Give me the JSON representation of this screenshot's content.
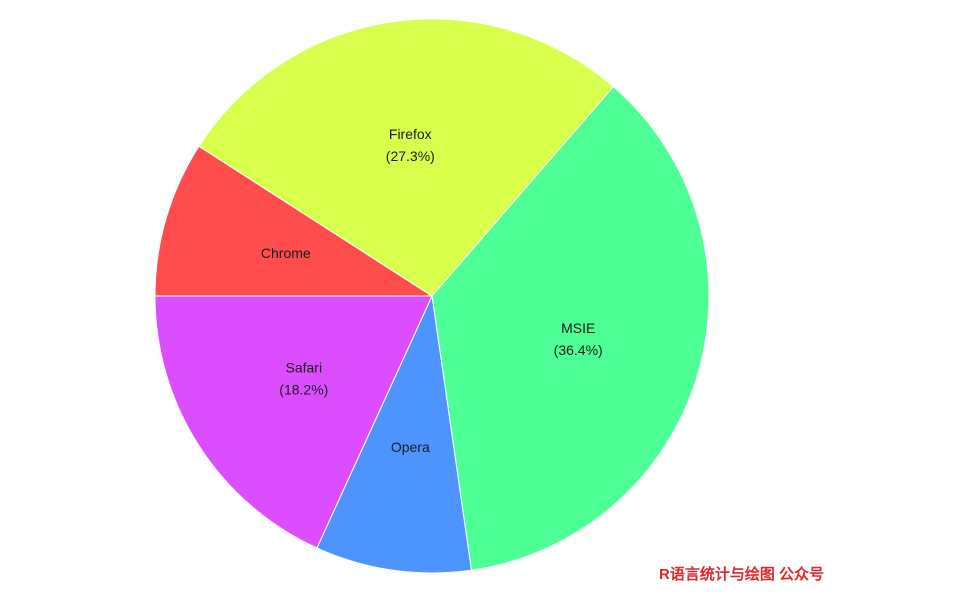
{
  "chart_data": {
    "type": "pie",
    "title": "",
    "start_angle_deg": 180,
    "direction": "clockwise",
    "legend": "none",
    "slices": [
      {
        "name": "Chrome",
        "value": 9.1,
        "label_lines": [
          "Chrome"
        ],
        "color": "#ff4d4d"
      },
      {
        "name": "Firefox",
        "value": 27.3,
        "label_lines": [
          "Firefox",
          "(27.3%)"
        ],
        "color": "#d9ff4d"
      },
      {
        "name": "MSIE",
        "value": 36.4,
        "label_lines": [
          "MSIE",
          "(36.4%)"
        ],
        "color": "#4dff94"
      },
      {
        "name": "Opera",
        "value": 9.1,
        "label_lines": [
          "Opera"
        ],
        "color": "#4d94ff"
      },
      {
        "name": "Safari",
        "value": 18.2,
        "label_lines": [
          "Safari",
          "(18.2%)"
        ],
        "color": "#db4dff"
      }
    ]
  },
  "watermark": {
    "text": "R语言统计与绘图 公众号",
    "color": "#e0282a"
  }
}
